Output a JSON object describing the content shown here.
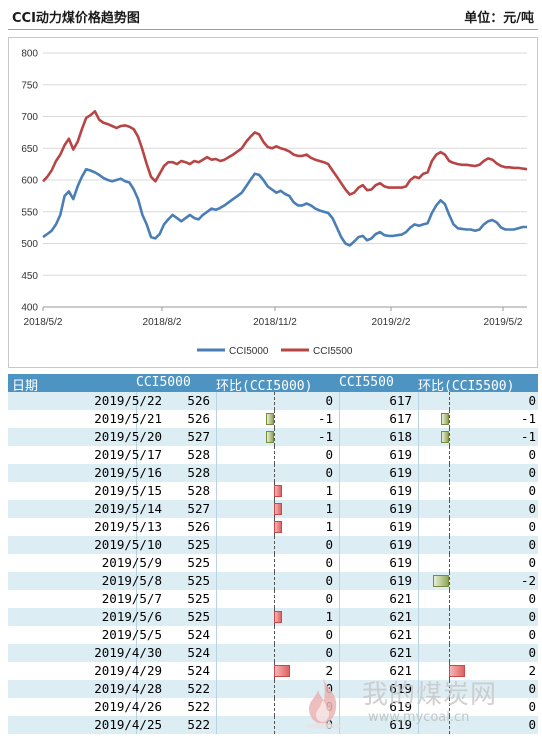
{
  "header": {
    "title": "CCI动力煤价格趋势图",
    "unit": "单位：元/吨"
  },
  "chart_data": {
    "type": "line",
    "y_ticks": [
      "800",
      "750",
      "700",
      "650",
      "600",
      "550",
      "500",
      "450",
      "400"
    ],
    "ylim": [
      400,
      800
    ],
    "x_tick_labels": [
      "2018/5/2",
      "2018/8/2",
      "2018/11/2",
      "2019/2/2",
      "2019/5/2"
    ],
    "grid": "horizontal",
    "legend_position": "bottom",
    "series": [
      {
        "name": "CCI5000",
        "color": "#4a7eb5",
        "values": [
          510,
          515,
          520,
          530,
          545,
          575,
          582,
          570,
          590,
          605,
          617,
          615,
          612,
          608,
          603,
          600,
          598,
          600,
          602,
          598,
          596,
          585,
          570,
          545,
          530,
          510,
          508,
          515,
          530,
          538,
          545,
          540,
          535,
          540,
          545,
          540,
          538,
          545,
          550,
          555,
          553,
          556,
          560,
          565,
          570,
          575,
          580,
          590,
          600,
          610,
          608,
          600,
          590,
          585,
          580,
          583,
          578,
          575,
          565,
          560,
          560,
          563,
          560,
          555,
          552,
          550,
          548,
          540,
          525,
          510,
          500,
          497,
          503,
          510,
          512,
          505,
          508,
          515,
          518,
          513,
          512,
          512,
          513,
          514,
          518,
          525,
          530,
          528,
          530,
          532,
          548,
          560,
          568,
          562,
          545,
          530,
          524,
          523,
          522,
          522,
          520,
          522,
          530,
          535,
          537,
          533,
          525,
          522,
          522,
          522,
          524,
          526,
          526
        ]
      },
      {
        "name": "CCI5500",
        "color": "#b84545",
        "values": [
          598,
          605,
          615,
          630,
          640,
          655,
          665,
          648,
          660,
          680,
          698,
          702,
          708,
          695,
          690,
          688,
          685,
          682,
          685,
          686,
          684,
          680,
          668,
          648,
          625,
          605,
          598,
          610,
          622,
          628,
          628,
          625,
          630,
          628,
          625,
          630,
          628,
          632,
          636,
          632,
          633,
          630,
          632,
          636,
          640,
          645,
          650,
          660,
          668,
          675,
          672,
          660,
          652,
          650,
          653,
          650,
          648,
          645,
          640,
          638,
          638,
          640,
          635,
          632,
          630,
          628,
          625,
          615,
          605,
          595,
          585,
          577,
          580,
          588,
          592,
          584,
          585,
          592,
          595,
          590,
          588,
          588,
          588,
          588,
          590,
          600,
          605,
          603,
          610,
          612,
          630,
          640,
          644,
          640,
          630,
          627,
          625,
          624,
          624,
          623,
          622,
          624,
          630,
          634,
          632,
          626,
          622,
          620,
          620,
          619,
          619,
          618,
          617
        ]
      }
    ]
  },
  "table": {
    "headers": [
      "日期",
      "CCI5000",
      "环比(CCI5000)",
      "CCI5500",
      "环比(CCI5500)"
    ],
    "rows": [
      {
        "date": "2019/5/22",
        "v1": "526",
        "d1": "0",
        "v2": "617",
        "d2": "0",
        "d1n": 0,
        "d2n": 0
      },
      {
        "date": "2019/5/21",
        "v1": "526",
        "d1": "-1",
        "v2": "617",
        "d2": "-1",
        "d1n": -1,
        "d2n": -1
      },
      {
        "date": "2019/5/20",
        "v1": "527",
        "d1": "-1",
        "v2": "618",
        "d2": "-1",
        "d1n": -1,
        "d2n": -1
      },
      {
        "date": "2019/5/17",
        "v1": "528",
        "d1": "0",
        "v2": "619",
        "d2": "0",
        "d1n": 0,
        "d2n": 0
      },
      {
        "date": "2019/5/16",
        "v1": "528",
        "d1": "0",
        "v2": "619",
        "d2": "0",
        "d1n": 0,
        "d2n": 0
      },
      {
        "date": "2019/5/15",
        "v1": "528",
        "d1": "1",
        "v2": "619",
        "d2": "0",
        "d1n": 1,
        "d2n": 0
      },
      {
        "date": "2019/5/14",
        "v1": "527",
        "d1": "1",
        "v2": "619",
        "d2": "0",
        "d1n": 1,
        "d2n": 0
      },
      {
        "date": "2019/5/13",
        "v1": "526",
        "d1": "1",
        "v2": "619",
        "d2": "0",
        "d1n": 1,
        "d2n": 0
      },
      {
        "date": "2019/5/10",
        "v1": "525",
        "d1": "0",
        "v2": "619",
        "d2": "0",
        "d1n": 0,
        "d2n": 0
      },
      {
        "date": "2019/5/9",
        "v1": "525",
        "d1": "0",
        "v2": "619",
        "d2": "0",
        "d1n": 0,
        "d2n": 0
      },
      {
        "date": "2019/5/8",
        "v1": "525",
        "d1": "0",
        "v2": "619",
        "d2": "-2",
        "d1n": 0,
        "d2n": -2
      },
      {
        "date": "2019/5/7",
        "v1": "525",
        "d1": "0",
        "v2": "621",
        "d2": "0",
        "d1n": 0,
        "d2n": 0
      },
      {
        "date": "2019/5/6",
        "v1": "525",
        "d1": "1",
        "v2": "621",
        "d2": "0",
        "d1n": 1,
        "d2n": 0
      },
      {
        "date": "2019/5/5",
        "v1": "524",
        "d1": "0",
        "v2": "621",
        "d2": "0",
        "d1n": 0,
        "d2n": 0
      },
      {
        "date": "2019/4/30",
        "v1": "524",
        "d1": "0",
        "v2": "621",
        "d2": "0",
        "d1n": 0,
        "d2n": 0
      },
      {
        "date": "2019/4/29",
        "v1": "524",
        "d1": "2",
        "v2": "621",
        "d2": "2",
        "d1n": 2,
        "d2n": 2
      },
      {
        "date": "2019/4/28",
        "v1": "522",
        "d1": "0",
        "v2": "619",
        "d2": "0",
        "d1n": 0,
        "d2n": 0
      },
      {
        "date": "2019/4/26",
        "v1": "522",
        "d1": "0",
        "v2": "619",
        "d2": "0",
        "d1n": 0,
        "d2n": 0
      },
      {
        "date": "2019/4/25",
        "v1": "522",
        "d1": "0",
        "v2": "619",
        "d2": "0",
        "d1n": 0,
        "d2n": 0
      }
    ]
  },
  "watermark": {
    "text": "我的煤炭网",
    "url": "www.mycoal.cn"
  }
}
